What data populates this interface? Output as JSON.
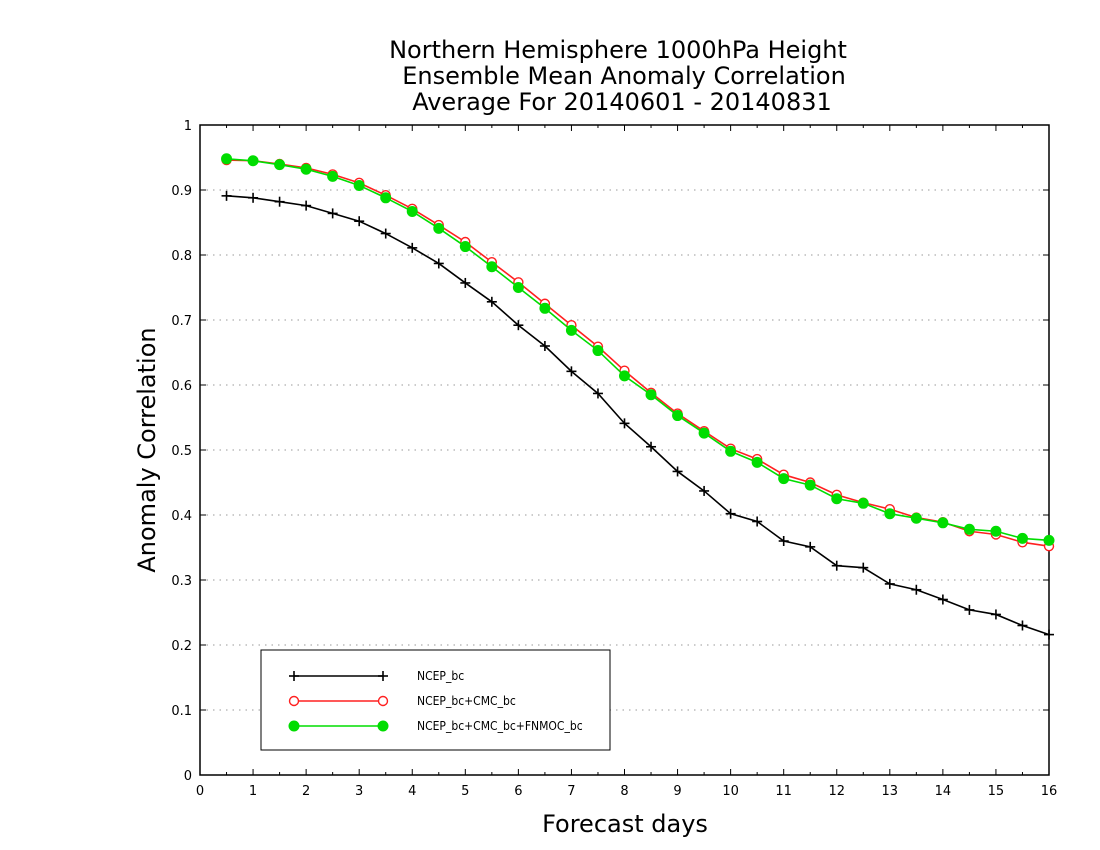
{
  "chart_data": {
    "type": "line",
    "title_lines": [
      "Northern Hemisphere 1000hPa Height",
      "Ensemble Mean Anomaly Correlation",
      "Average For 20140601 - 20140831"
    ],
    "xlabel": "Forecast days",
    "ylabel": "Anomaly Correlation",
    "xlim": [
      0,
      16
    ],
    "ylim": [
      0,
      1
    ],
    "x_ticks": [
      "0",
      "1",
      "2",
      "3",
      "4",
      "5",
      "6",
      "7",
      "8",
      "9",
      "10",
      "11",
      "12",
      "13",
      "14",
      "15",
      "16"
    ],
    "y_ticks": [
      "0",
      "0.1",
      "0.2",
      "0.3",
      "0.4",
      "0.5",
      "0.6",
      "0.7",
      "0.8",
      "0.9",
      "1"
    ],
    "grid": "horizontal-dotted",
    "legend_position": "bottom-left",
    "x": [
      0.5,
      1,
      1.5,
      2,
      2.5,
      3,
      3.5,
      4,
      4.5,
      5,
      5.5,
      6,
      6.5,
      7,
      7.5,
      8,
      8.5,
      9,
      9.5,
      10,
      10.5,
      11,
      11.5,
      12,
      12.5,
      13,
      13.5,
      14,
      14.5,
      15,
      15.5,
      16
    ],
    "series": [
      {
        "name": "NCEP_bc",
        "color": "#000000",
        "marker": "plus",
        "values": [
          0.891,
          0.888,
          0.882,
          0.876,
          0.864,
          0.852,
          0.833,
          0.811,
          0.787,
          0.757,
          0.728,
          0.692,
          0.66,
          0.621,
          0.587,
          0.541,
          0.505,
          0.467,
          0.437,
          0.402,
          0.39,
          0.36,
          0.351,
          0.322,
          0.319,
          0.294,
          0.285,
          0.27,
          0.254,
          0.247,
          0.23,
          0.216
        ]
      },
      {
        "name": "NCEP_bc+CMC_bc",
        "color": "#ff2020",
        "marker": "open-circle",
        "values": [
          0.946,
          0.945,
          0.94,
          0.934,
          0.924,
          0.911,
          0.892,
          0.871,
          0.846,
          0.82,
          0.789,
          0.758,
          0.725,
          0.692,
          0.659,
          0.622,
          0.588,
          0.556,
          0.529,
          0.502,
          0.486,
          0.462,
          0.45,
          0.431,
          0.419,
          0.409,
          0.396,
          0.389,
          0.375,
          0.37,
          0.358,
          0.352
        ]
      },
      {
        "name": "NCEP_bc+CMC_bc+FNMOC_bc",
        "color": "#00dd00",
        "marker": "filled-circle",
        "values": [
          0.948,
          0.945,
          0.939,
          0.932,
          0.921,
          0.907,
          0.888,
          0.867,
          0.841,
          0.813,
          0.782,
          0.75,
          0.718,
          0.684,
          0.653,
          0.614,
          0.585,
          0.553,
          0.526,
          0.498,
          0.481,
          0.456,
          0.446,
          0.425,
          0.418,
          0.402,
          0.395,
          0.388,
          0.378,
          0.375,
          0.364,
          0.361
        ]
      }
    ]
  }
}
